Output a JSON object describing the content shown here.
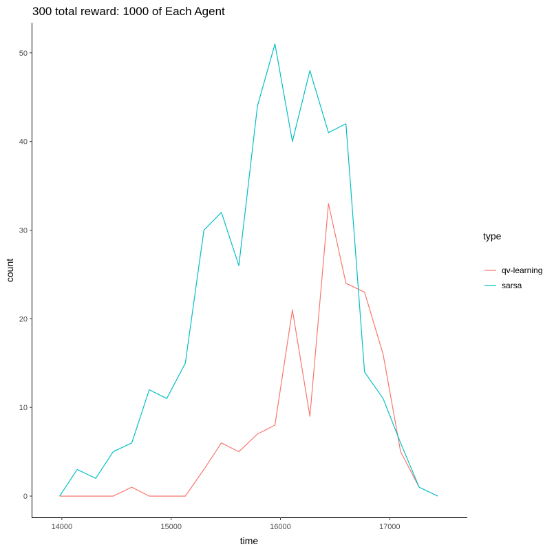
{
  "chart_data": {
    "type": "line",
    "title": "300 total reward: 1000 of Each Agent",
    "xlabel": "time",
    "ylabel": "count",
    "xlim": [
      13730,
      17710
    ],
    "ylim": [
      -2.4,
      53.4
    ],
    "x_ticks": [
      14000,
      15000,
      16000,
      17000
    ],
    "y_ticks": [
      0,
      10,
      20,
      30,
      40,
      50
    ],
    "grid": false,
    "legend": {
      "title": "type",
      "placement": "right"
    },
    "series": [
      {
        "name": "qv-learning",
        "color": "#F8766D",
        "x": [
          13980,
          14140,
          14310,
          14470,
          14640,
          14800,
          14960,
          15130,
          15300,
          15460,
          15620,
          15790,
          15950,
          16110,
          16270,
          16440,
          16600,
          16770,
          16940,
          17100,
          17270
        ],
        "y": [
          0,
          0,
          0,
          0,
          1,
          0,
          0,
          0,
          3,
          6,
          5,
          7,
          8,
          21,
          9,
          33,
          24,
          23,
          16,
          5,
          1
        ]
      },
      {
        "name": "sarsa",
        "color": "#00BFC4",
        "x": [
          13980,
          14140,
          14310,
          14470,
          14640,
          14800,
          14960,
          15130,
          15300,
          15460,
          15620,
          15790,
          15950,
          16110,
          16270,
          16440,
          16600,
          16770,
          16940,
          17100,
          17270,
          17440
        ],
        "y": [
          0,
          3,
          2,
          5,
          6,
          12,
          11,
          15,
          30,
          32,
          26,
          44,
          51,
          40,
          48,
          41,
          42,
          14,
          11,
          6,
          1,
          0
        ]
      }
    ]
  }
}
